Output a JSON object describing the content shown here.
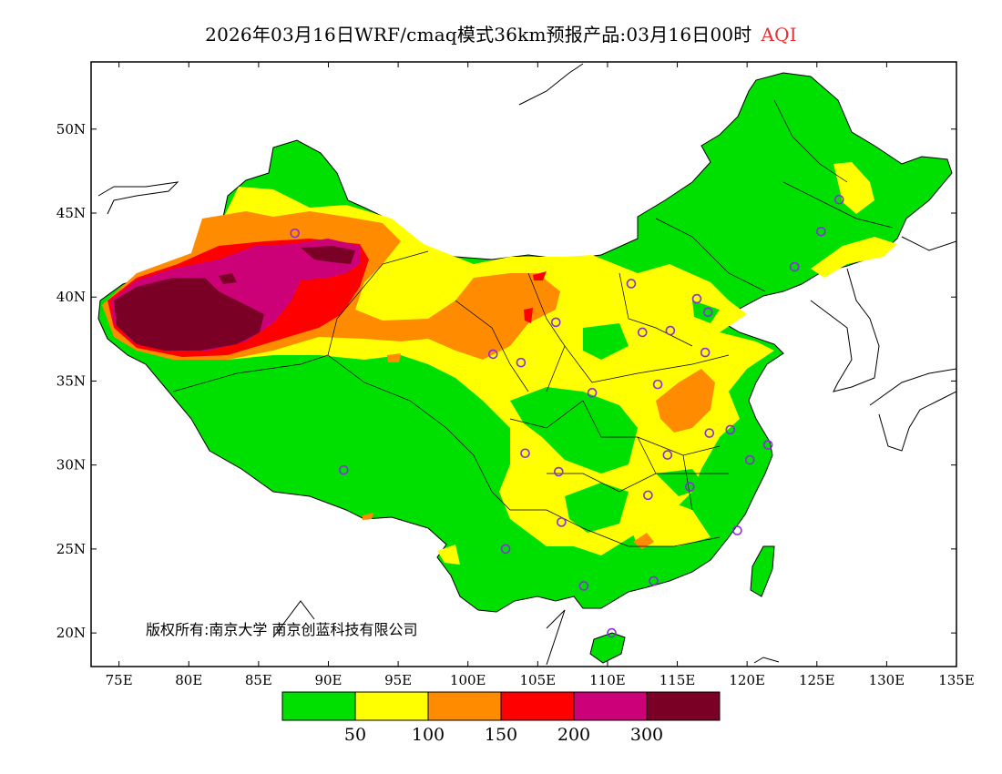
{
  "title": {
    "main": "2026年03月16日WRF/cmaq模式36km预报产品:03月16日00时",
    "variable": "AQI"
  },
  "map": {
    "lon_range": [
      73,
      135
    ],
    "lat_range": [
      18,
      54
    ],
    "x_ticks": [
      "75E",
      "80E",
      "85E",
      "90E",
      "95E",
      "100E",
      "105E",
      "110E",
      "115E",
      "120E",
      "125E",
      "130E",
      "135E"
    ],
    "y_ticks": [
      "20N",
      "25N",
      "30N",
      "35N",
      "40N",
      "45N",
      "50N"
    ],
    "copyright": "版权所有:南京大学  南京创蓝科技有限公司"
  },
  "legend": {
    "colors": [
      "#00e000",
      "#ffff00",
      "#ff8c00",
      "#ff0000",
      "#cc0077",
      "#7a0025"
    ],
    "labels": [
      "50",
      "100",
      "150",
      "200",
      "300"
    ]
  },
  "colors": {
    "coast": "#000000",
    "station": "#8a2be2"
  },
  "stations": [
    [
      87.6,
      43.8
    ],
    [
      91.1,
      29.7
    ],
    [
      101.8,
      36.6
    ],
    [
      103.8,
      36.1
    ],
    [
      106.3,
      38.5
    ],
    [
      111.7,
      40.8
    ],
    [
      116.4,
      39.9
    ],
    [
      117.2,
      39.1
    ],
    [
      112.5,
      37.9
    ],
    [
      114.5,
      38.0
    ],
    [
      117.0,
      36.7
    ],
    [
      113.6,
      34.8
    ],
    [
      108.9,
      34.3
    ],
    [
      104.1,
      30.7
    ],
    [
      106.5,
      29.6
    ],
    [
      106.7,
      26.6
    ],
    [
      102.7,
      25.0
    ],
    [
      108.3,
      22.8
    ],
    [
      113.3,
      23.1
    ],
    [
      110.3,
      20.0
    ],
    [
      112.9,
      28.2
    ],
    [
      115.9,
      28.7
    ],
    [
      114.3,
      30.6
    ],
    [
      117.3,
      31.9
    ],
    [
      118.8,
      32.1
    ],
    [
      120.2,
      30.3
    ],
    [
      121.5,
      31.2
    ],
    [
      119.3,
      26.1
    ],
    [
      123.4,
      41.8
    ],
    [
      125.3,
      43.9
    ],
    [
      126.6,
      45.8
    ]
  ]
}
